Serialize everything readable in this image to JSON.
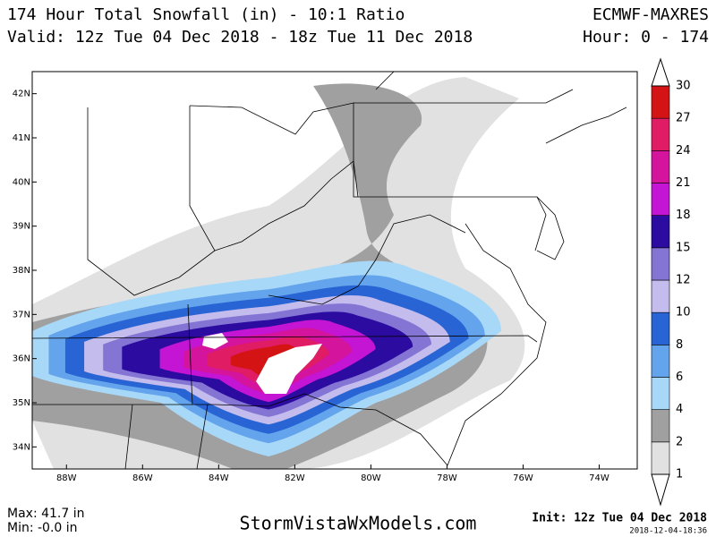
{
  "header": {
    "title": "174 Hour Total Snowfall (in) - 10:1 Ratio",
    "valid": "Valid: 12z Tue 04 Dec 2018 - 18z Tue 11 Dec 2018",
    "model": "ECMWF-MAXRES",
    "hour": "Hour: 0 - 174"
  },
  "map": {
    "lat_range": [
      33.5,
      42.5
    ],
    "lon_range": [
      -88.9,
      -73.0
    ],
    "lat_ticks": [
      {
        "value": 42,
        "label": "42N"
      },
      {
        "value": 41,
        "label": "41N"
      },
      {
        "value": 40,
        "label": "40N"
      },
      {
        "value": 39,
        "label": "39N"
      },
      {
        "value": 38,
        "label": "38N"
      },
      {
        "value": 37,
        "label": "37N"
      },
      {
        "value": 36,
        "label": "36N"
      },
      {
        "value": 35,
        "label": "35N"
      },
      {
        "value": 34,
        "label": "34N"
      }
    ],
    "lon_ticks": [
      {
        "value": -88,
        "label": "88W"
      },
      {
        "value": -86,
        "label": "86W"
      },
      {
        "value": -84,
        "label": "84W"
      },
      {
        "value": -82,
        "label": "82W"
      },
      {
        "value": -80,
        "label": "80W"
      },
      {
        "value": -78,
        "label": "78W"
      },
      {
        "value": -76,
        "label": "76W"
      },
      {
        "value": -74,
        "label": "74W"
      }
    ]
  },
  "legend": {
    "levels": [
      1,
      2,
      4,
      6,
      8,
      10,
      12,
      15,
      18,
      21,
      24,
      27,
      30
    ],
    "colors": [
      "#e1e1e1",
      "#a0a0a0",
      "#a8d8f8",
      "#64a4ec",
      "#2864d4",
      "#c4bcec",
      "#8474d4",
      "#2c0ca0",
      "#c414d4",
      "#d4149c",
      "#e01c64",
      "#d41414"
    ]
  },
  "footer": {
    "max": "Max: 41.7 in",
    "min": "Min: -0.0 in",
    "site": "StormVistaWxModels.com",
    "init": "Init: 12z Tue 04 Dec 2018",
    "stamp": "2018-12-04-18:36"
  }
}
